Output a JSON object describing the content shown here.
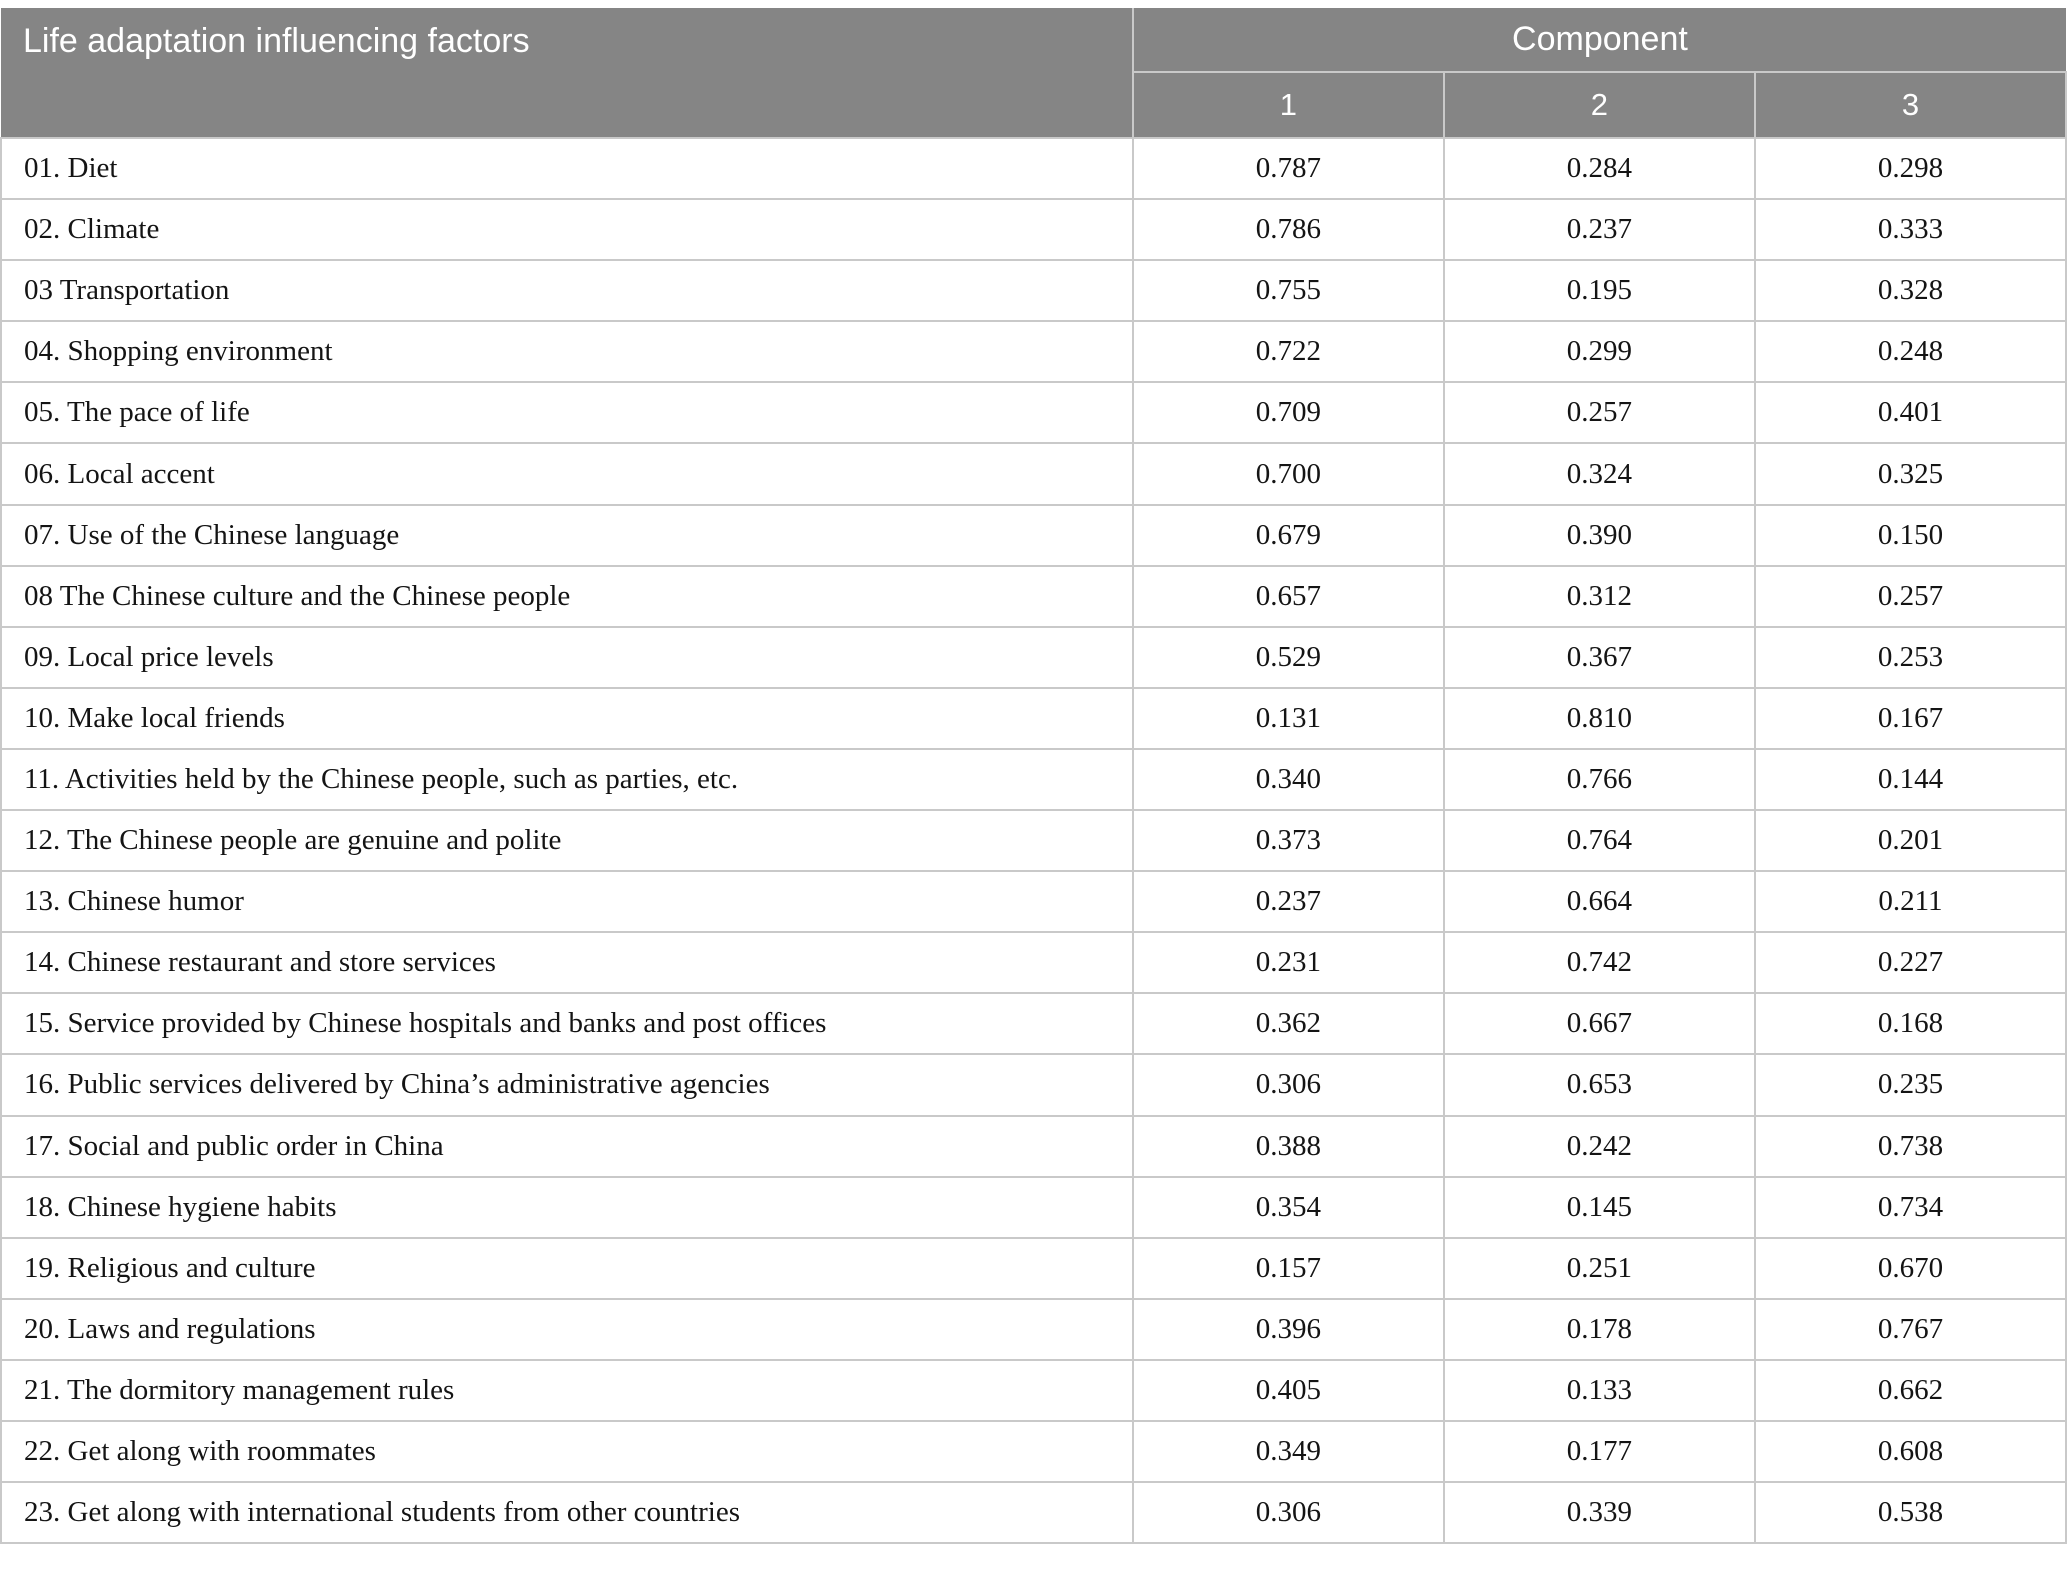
{
  "table": {
    "header": {
      "factor_column_label": "Life adaptation influencing factors",
      "component_group_label": "Component",
      "component_columns": [
        "1",
        "2",
        "3"
      ]
    },
    "rows": [
      {
        "factor": "01. Diet",
        "values": [
          "0.787",
          "0.284",
          "0.298"
        ]
      },
      {
        "factor": "02. Climate",
        "values": [
          "0.786",
          "0.237",
          "0.333"
        ]
      },
      {
        "factor": "03 Transportation",
        "values": [
          "0.755",
          "0.195",
          "0.328"
        ]
      },
      {
        "factor": "04. Shopping environment",
        "values": [
          "0.722",
          "0.299",
          "0.248"
        ]
      },
      {
        "factor": "05. The pace of life",
        "values": [
          "0.709",
          "0.257",
          "0.401"
        ]
      },
      {
        "factor": "06. Local accent",
        "values": [
          "0.700",
          "0.324",
          "0.325"
        ]
      },
      {
        "factor": "07. Use of the Chinese language",
        "values": [
          "0.679",
          "0.390",
          "0.150"
        ]
      },
      {
        "factor": "08 The Chinese culture and the Chinese people",
        "values": [
          "0.657",
          "0.312",
          "0.257"
        ]
      },
      {
        "factor": "09. Local price levels",
        "values": [
          "0.529",
          "0.367",
          "0.253"
        ]
      },
      {
        "factor": "10. Make local friends",
        "values": [
          "0.131",
          "0.810",
          "0.167"
        ]
      },
      {
        "factor": "11. Activities held by the Chinese people, such as parties, etc.",
        "values": [
          "0.340",
          "0.766",
          "0.144"
        ]
      },
      {
        "factor": "12. The Chinese people are genuine and polite",
        "values": [
          "0.373",
          "0.764",
          "0.201"
        ]
      },
      {
        "factor": "13. Chinese humor",
        "values": [
          "0.237",
          "0.664",
          "0.211"
        ]
      },
      {
        "factor": "14. Chinese restaurant and store services",
        "values": [
          "0.231",
          "0.742",
          "0.227"
        ]
      },
      {
        "factor": "15. Service provided by Chinese hospitals and banks and post offices",
        "values": [
          "0.362",
          "0.667",
          "0.168"
        ]
      },
      {
        "factor": "16. Public services delivered by China’s administrative agencies",
        "values": [
          "0.306",
          "0.653",
          "0.235"
        ]
      },
      {
        "factor": "17. Social and public order in China",
        "values": [
          "0.388",
          "0.242",
          "0.738"
        ]
      },
      {
        "factor": "18. Chinese hygiene habits",
        "values": [
          "0.354",
          "0.145",
          "0.734"
        ]
      },
      {
        "factor": "19. Religious and culture",
        "values": [
          "0.157",
          "0.251",
          "0.670"
        ]
      },
      {
        "factor": "20. Laws and regulations",
        "values": [
          "0.396",
          "0.178",
          "0.767"
        ]
      },
      {
        "factor": "21. The dormitory management rules",
        "values": [
          "0.405",
          "0.133",
          "0.662"
        ]
      },
      {
        "factor": "22. Get along with roommates",
        "values": [
          "0.349",
          "0.177",
          "0.608"
        ]
      },
      {
        "factor": "23. Get along with international students from other countries",
        "values": [
          "0.306",
          "0.339",
          "0.538"
        ]
      }
    ]
  },
  "colors": {
    "header_bg": "#858585",
    "border": "#c9c9c9",
    "header_text": "#ffffff",
    "body_text": "#141414"
  }
}
